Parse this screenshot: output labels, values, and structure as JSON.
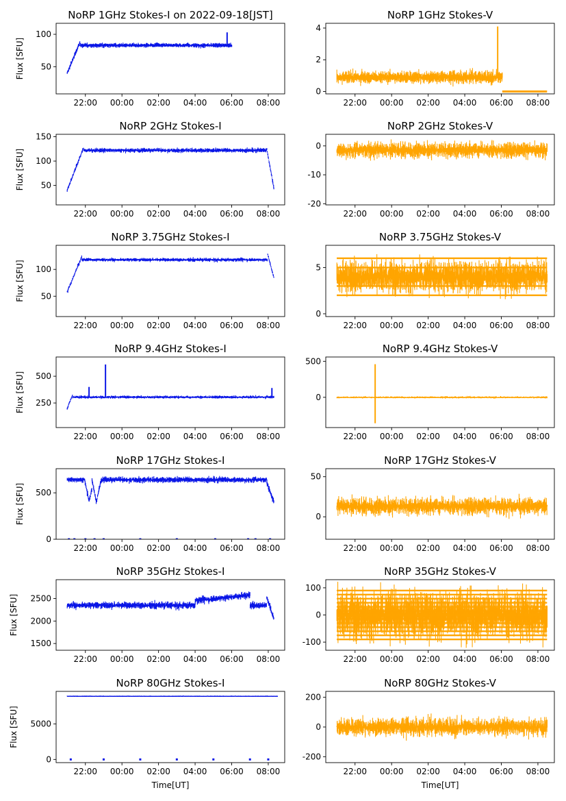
{
  "chart_data": {
    "type": "scatter",
    "x_tick_labels": [
      "22:00",
      "00:00",
      "02:00",
      "04:00",
      "06:00",
      "08:00"
    ],
    "x_tick_positions_hours_since_22": [
      0,
      2,
      4,
      6,
      8,
      10
    ],
    "xlabel": "Time[UT]",
    "colors": {
      "stokes_i": "#0a16e6",
      "stokes_v": "#ffa500"
    },
    "panels": [
      {
        "title": "NoRP 1GHz Stokes-I on 2022-09-18[JST]",
        "stokes": "I",
        "ylabel": "Flux [SFU]",
        "ylim": [
          8,
          117
        ],
        "yticks": [
          50,
          100
        ],
        "data": {
          "t_start": 21.0,
          "t_end": 30.0,
          "baseline": 83,
          "noise": 3,
          "features": [
            {
              "kind": "ramp",
              "from_t": 21.0,
              "to_t": 21.7,
              "from_y": 40,
              "to_y": 88
            },
            {
              "kind": "spike",
              "t": 29.75,
              "y": 103
            }
          ]
        }
      },
      {
        "title": "NoRP 1GHz Stokes-V",
        "stokes": "V",
        "ylabel": "",
        "ylim": [
          -0.15,
          4.3
        ],
        "yticks": [
          0,
          2,
          4
        ],
        "data": {
          "t_start": 21.0,
          "t_end": 30.05,
          "baseline": 0.9,
          "noise": 0.35,
          "features": [
            {
              "kind": "spike",
              "t": 29.8,
              "y": 4.1
            },
            {
              "kind": "flat",
              "from_t": 30.05,
              "to_t": 32.5,
              "y": 0.0
            }
          ]
        }
      },
      {
        "title": "NoRP 2GHz Stokes-I",
        "stokes": "I",
        "ylabel": "Flux [SFU]",
        "ylim": [
          10,
          155
        ],
        "yticks": [
          50,
          100,
          150
        ],
        "data": {
          "t_start": 21.0,
          "t_end": 32.3,
          "baseline": 122,
          "noise": 4,
          "features": [
            {
              "kind": "ramp",
              "from_t": 21.0,
              "to_t": 21.9,
              "from_y": 40,
              "to_y": 128
            },
            {
              "kind": "drop",
              "from_t": 31.9,
              "to_t": 32.3,
              "from_y": 128,
              "to_y": 45
            }
          ]
        }
      },
      {
        "title": "NoRP 2GHz Stokes-V",
        "stokes": "V",
        "ylabel": "",
        "ylim": [
          -20.4,
          4.0
        ],
        "yticks": [
          -20,
          -10,
          0
        ],
        "data": {
          "t_start": 21.0,
          "t_end": 32.5,
          "baseline": -1.5,
          "noise": 2.5,
          "features": []
        }
      },
      {
        "title": "NoRP 3.75GHz Stokes-I",
        "stokes": "I",
        "ylabel": "Flux [SFU]",
        "ylim": [
          12,
          145
        ],
        "yticks": [
          50,
          100
        ],
        "data": {
          "t_start": 21.0,
          "t_end": 32.3,
          "baseline": 118,
          "noise": 3,
          "features": [
            {
              "kind": "ramp",
              "from_t": 21.0,
              "to_t": 21.8,
              "from_y": 58,
              "to_y": 124
            },
            {
              "kind": "drop",
              "from_t": 31.95,
              "to_t": 32.3,
              "from_y": 130,
              "to_y": 85
            }
          ]
        }
      },
      {
        "title": "NoRP 3.75GHz Stokes-V",
        "stokes": "V",
        "ylabel": "",
        "ylim": [
          -0.3,
          7.4
        ],
        "yticks": [
          0,
          5
        ],
        "data": {
          "t_start": 21.0,
          "t_end": 32.5,
          "baseline": 4.0,
          "noise": 1.6,
          "features": [
            {
              "kind": "levels",
              "values": [
                2,
                3,
                4,
                5,
                6
              ]
            }
          ]
        }
      },
      {
        "title": "NoRP 9.4GHz Stokes-I",
        "stokes": "I",
        "ylabel": "Flux [SFU]",
        "ylim": [
          20,
          680
        ],
        "yticks": [
          250,
          500
        ],
        "data": {
          "t_start": 21.0,
          "t_end": 32.3,
          "baseline": 305,
          "noise": 12,
          "features": [
            {
              "kind": "ramp",
              "from_t": 21.0,
              "to_t": 21.3,
              "from_y": 200,
              "to_y": 330
            },
            {
              "kind": "spike",
              "t": 23.1,
              "y": 610
            },
            {
              "kind": "spike",
              "t": 22.2,
              "y": 400
            },
            {
              "kind": "spike",
              "t": 32.2,
              "y": 390
            }
          ]
        }
      },
      {
        "title": "NoRP 9.4GHz Stokes-V",
        "stokes": "V",
        "ylabel": "",
        "ylim": [
          -420,
          560
        ],
        "yticks": [
          0,
          500
        ],
        "data": {
          "t_start": 21.0,
          "t_end": 32.5,
          "baseline": 0,
          "noise": 12,
          "features": [
            {
              "kind": "spike",
              "t": 23.1,
              "y": 460
            },
            {
              "kind": "spike",
              "t": 23.1,
              "y": -360
            }
          ]
        }
      },
      {
        "title": "NoRP 17GHz Stokes-I",
        "stokes": "I",
        "ylabel": "Flux [SFU]",
        "ylim": [
          0,
          760
        ],
        "yticks": [
          0,
          500
        ],
        "data": {
          "t_start": 21.0,
          "t_end": 32.3,
          "baseline": 640,
          "noise": 28,
          "features": [
            {
              "kind": "dip",
              "t": 22.2,
              "y": 410
            },
            {
              "kind": "dip",
              "t": 22.6,
              "y": 400
            },
            {
              "kind": "drop",
              "from_t": 31.9,
              "to_t": 32.3,
              "from_y": 620,
              "to_y": 400
            },
            {
              "kind": "zeros",
              "values": [
                21.1,
                21.4,
                22.0,
                22.5,
                23.0,
                25.0,
                27.0,
                29.1,
                30.9,
                31.3,
                32.1
              ]
            }
          ]
        }
      },
      {
        "title": "NoRP 17GHz Stokes-V",
        "stokes": "V",
        "ylabel": "",
        "ylim": [
          -28,
          60
        ],
        "yticks": [
          0,
          50
        ],
        "data": {
          "t_start": 21.0,
          "t_end": 32.5,
          "baseline": 13,
          "noise": 10,
          "features": []
        }
      },
      {
        "title": "NoRP 35GHz Stokes-I",
        "stokes": "I",
        "ylabel": "Flux [SFU]",
        "ylim": [
          1350,
          2920
        ],
        "yticks": [
          1500,
          2000,
          2500
        ],
        "data": {
          "t_start": 21.0,
          "t_end": 32.3,
          "baseline": 2350,
          "noise": 70,
          "features": [
            {
              "kind": "ramp",
              "from_t": 28.0,
              "to_t": 31.0,
              "from_y": 2450,
              "to_y": 2580
            },
            {
              "kind": "drop",
              "from_t": 31.9,
              "to_t": 32.3,
              "from_y": 2550,
              "to_y": 2050
            }
          ]
        }
      },
      {
        "title": "NoRP 35GHz Stokes-V",
        "stokes": "V",
        "ylabel": "",
        "ylim": [
          -130,
          130
        ],
        "yticks": [
          -100,
          0,
          100
        ],
        "data": {
          "t_start": 21.0,
          "t_end": 32.5,
          "baseline": 0,
          "noise": 80,
          "features": [
            {
              "kind": "levels",
              "values": [
                -90,
                -75,
                -60,
                -45,
                -30,
                -15,
                0,
                15,
                30,
                45,
                60,
                75,
                90
              ]
            }
          ]
        }
      },
      {
        "title": "NoRP 80GHz Stokes-I",
        "stokes": "I",
        "ylabel": "Flux [SFU]",
        "ylim": [
          -450,
          9600
        ],
        "yticks": [
          0,
          5000
        ],
        "data": {
          "t_start": 21.0,
          "t_end": 32.5,
          "baseline": 8950,
          "noise": 40,
          "features": [
            {
              "kind": "zeros",
              "values": [
                21.2,
                23.0,
                25.0,
                27.0,
                29.0,
                31.0,
                32.0
              ]
            }
          ]
        }
      },
      {
        "title": "NoRP 80GHz Stokes-V",
        "stokes": "V",
        "ylabel": "",
        "ylim": [
          -240,
          240
        ],
        "yticks": [
          -200,
          0,
          200
        ],
        "data": {
          "t_start": 21.0,
          "t_end": 32.5,
          "baseline": 0,
          "noise": 55,
          "features": []
        }
      }
    ]
  }
}
